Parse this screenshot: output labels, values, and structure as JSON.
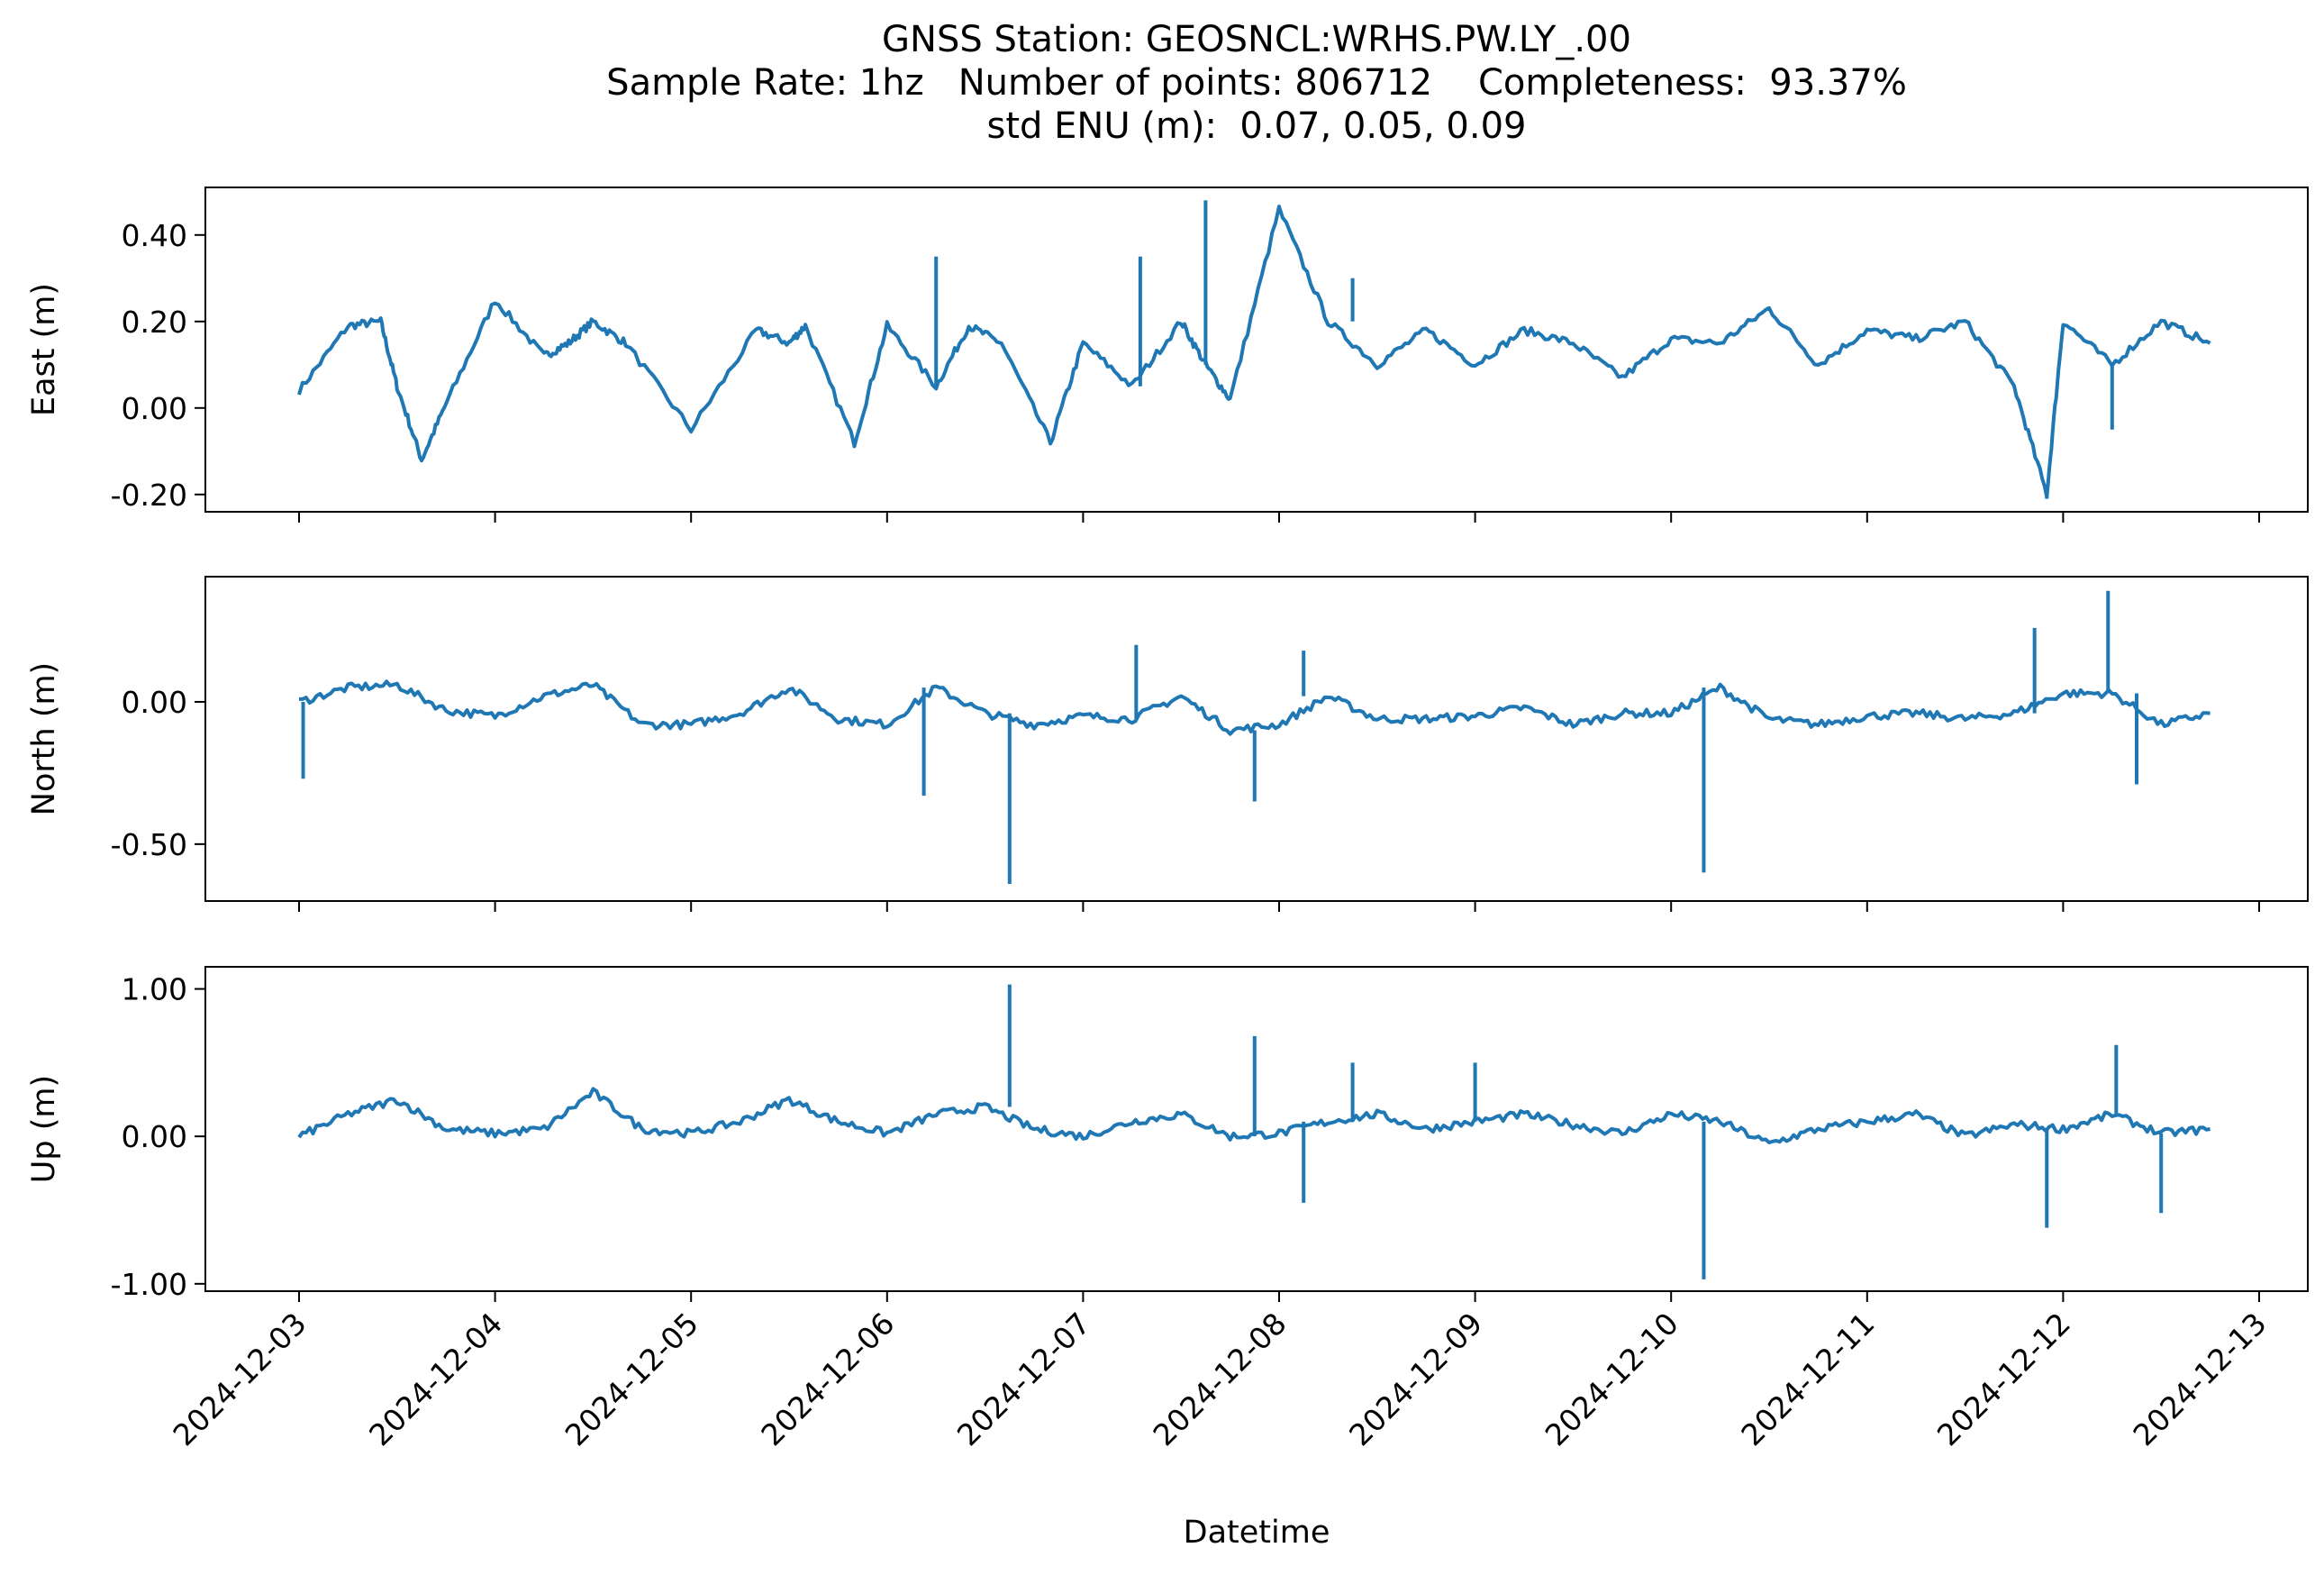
{
  "title": {
    "line1": "GNSS Station: GEOSNCL:WRHS.PW.LY_.00",
    "line2": "Sample Rate: 1hz   Number of points: 806712    Completeness:  93.37%",
    "line3": "std ENU (m):  0.07, 0.05, 0.09"
  },
  "colors": {
    "series": "#1f77b4",
    "axes": "#000000",
    "background": "#ffffff"
  },
  "chart_data": [
    {
      "type": "line",
      "ylabel": "East (m)",
      "xlabel": "",
      "ylim": [
        -0.24,
        0.51
      ],
      "yticks": [
        -0.2,
        0.0,
        0.2,
        0.4
      ],
      "ytick_labels": [
        "-0.20",
        "0.00",
        "0.20",
        "0.40"
      ],
      "grid": false,
      "x": [
        "2024-12-03T00:00",
        "2024-12-03T06:00",
        "2024-12-03T10:00",
        "2024-12-03T12:00",
        "2024-12-03T15:00",
        "2024-12-03T18:00",
        "2024-12-04T00:00",
        "2024-12-04T06:00",
        "2024-12-04T09:00",
        "2024-12-04T12:00",
        "2024-12-04T16:00",
        "2024-12-05T00:00",
        "2024-12-05T08:00",
        "2024-12-05T12:00",
        "2024-12-05T14:00",
        "2024-12-05T20:00",
        "2024-12-06T00:00",
        "2024-12-06T06:00",
        "2024-12-06T10:00",
        "2024-12-06T14:00",
        "2024-12-06T20:00",
        "2024-12-07T00:00",
        "2024-12-07T06:00",
        "2024-12-07T12:00",
        "2024-12-07T15:00",
        "2024-12-07T18:00",
        "2024-12-08T00:00",
        "2024-12-08T06:00",
        "2024-12-08T12:00",
        "2024-12-08T18:00",
        "2024-12-09T00:00",
        "2024-12-09T06:00",
        "2024-12-09T12:00",
        "2024-12-09T18:00",
        "2024-12-10T00:00",
        "2024-12-10T06:00",
        "2024-12-10T12:00",
        "2024-12-10T18:00",
        "2024-12-11T00:00",
        "2024-12-11T06:00",
        "2024-12-11T12:00",
        "2024-12-11T18:00",
        "2024-12-11T22:00",
        "2024-12-12T00:00",
        "2024-12-12T06:00",
        "2024-12-12T12:00",
        "2024-12-12T18:00"
      ],
      "values": [
        0.04,
        0.19,
        0.2,
        0.05,
        -0.12,
        0.01,
        0.25,
        0.12,
        0.15,
        0.2,
        0.15,
        -0.05,
        0.18,
        0.15,
        0.19,
        -0.08,
        0.19,
        0.05,
        0.19,
        0.15,
        -0.08,
        0.15,
        0.05,
        0.2,
        0.1,
        0.02,
        0.46,
        0.2,
        0.1,
        0.18,
        0.1,
        0.18,
        0.15,
        0.07,
        0.16,
        0.15,
        0.23,
        0.1,
        0.18,
        0.16,
        0.2,
        0.05,
        -0.2,
        0.2,
        0.1,
        0.2,
        0.15
      ],
      "spikes": [
        {
          "x": "2024-12-06T06:00",
          "value": 0.35
        },
        {
          "x": "2024-12-07T07:00",
          "value": 0.35
        },
        {
          "x": "2024-12-07T15:00",
          "value": 0.48
        },
        {
          "x": "2024-12-08T09:00",
          "value": 0.3
        },
        {
          "x": "2024-12-11T22:00",
          "value": -0.21
        },
        {
          "x": "2024-12-12T06:00",
          "value": -0.05
        }
      ]
    },
    {
      "type": "line",
      "ylabel": "North (m)",
      "xlabel": "",
      "ylim": [
        -0.7,
        0.44
      ],
      "yticks": [
        -0.5,
        0.0
      ],
      "ytick_labels": [
        "-0.50",
        "0.00"
      ],
      "grid": false,
      "x": [
        "2024-12-03T00:00",
        "2024-12-03T06:00",
        "2024-12-03T12:00",
        "2024-12-03T18:00",
        "2024-12-04T00:00",
        "2024-12-04T06:00",
        "2024-12-04T12:00",
        "2024-12-04T18:00",
        "2024-12-05T00:00",
        "2024-12-05T06:00",
        "2024-12-05T12:00",
        "2024-12-05T18:00",
        "2024-12-06T00:00",
        "2024-12-06T06:00",
        "2024-12-06T12:00",
        "2024-12-06T18:00",
        "2024-12-07T00:00",
        "2024-12-07T06:00",
        "2024-12-07T12:00",
        "2024-12-07T18:00",
        "2024-12-08T00:00",
        "2024-12-08T06:00",
        "2024-12-08T12:00",
        "2024-12-08T18:00",
        "2024-12-09T00:00",
        "2024-12-09T06:00",
        "2024-12-09T12:00",
        "2024-12-09T18:00",
        "2024-12-10T00:00",
        "2024-12-10T06:00",
        "2024-12-10T12:00",
        "2024-12-10T18:00",
        "2024-12-11T00:00",
        "2024-12-11T06:00",
        "2024-12-11T12:00",
        "2024-12-11T18:00",
        "2024-12-12T00:00",
        "2024-12-12T06:00",
        "2024-12-12T12:00",
        "2024-12-12T18:00"
      ],
      "values": [
        0.0,
        0.05,
        0.06,
        -0.03,
        -0.05,
        0.02,
        0.06,
        -0.08,
        -0.08,
        -0.04,
        0.05,
        -0.06,
        -0.08,
        0.05,
        -0.04,
        -0.08,
        -0.05,
        -0.06,
        0.02,
        -0.1,
        -0.08,
        0.02,
        -0.06,
        -0.06,
        -0.05,
        -0.02,
        -0.08,
        -0.04,
        -0.04,
        0.05,
        -0.06,
        -0.08,
        -0.05,
        -0.04,
        -0.06,
        -0.04,
        0.03,
        0.03,
        -0.08,
        -0.04
      ],
      "spikes": [
        {
          "x": "2024-12-03T00:30",
          "value": -0.27
        },
        {
          "x": "2024-12-06T04:30",
          "value": -0.33
        },
        {
          "x": "2024-12-06T15:00",
          "value": -0.64
        },
        {
          "x": "2024-12-07T06:30",
          "value": 0.2
        },
        {
          "x": "2024-12-07T21:00",
          "value": -0.35
        },
        {
          "x": "2024-12-08T03:00",
          "value": 0.18
        },
        {
          "x": "2024-12-10T04:00",
          "value": -0.6
        },
        {
          "x": "2024-12-11T20:30",
          "value": 0.26
        },
        {
          "x": "2024-12-12T05:30",
          "value": 0.39
        },
        {
          "x": "2024-12-12T09:00",
          "value": -0.29
        }
      ]
    },
    {
      "type": "line",
      "ylabel": "Up (m)",
      "xlabel": "Datetime",
      "ylim": [
        -1.05,
        1.15
      ],
      "yticks": [
        -1.0,
        0.0,
        1.0
      ],
      "ytick_labels": [
        "-1.00",
        "0.00",
        "1.00"
      ],
      "grid": false,
      "xticks": [
        "2024-12-03",
        "2024-12-04",
        "2024-12-05",
        "2024-12-06",
        "2024-12-07",
        "2024-12-08",
        "2024-12-09",
        "2024-12-10",
        "2024-12-11",
        "2024-12-12",
        "2024-12-13"
      ],
      "x": [
        "2024-12-03T00:00",
        "2024-12-03T06:00",
        "2024-12-03T12:00",
        "2024-12-03T18:00",
        "2024-12-04T00:00",
        "2024-12-04T06:00",
        "2024-12-04T12:00",
        "2024-12-04T18:00",
        "2024-12-05T00:00",
        "2024-12-05T06:00",
        "2024-12-05T12:00",
        "2024-12-05T18:00",
        "2024-12-06T00:00",
        "2024-12-06T06:00",
        "2024-12-06T12:00",
        "2024-12-06T18:00",
        "2024-12-07T00:00",
        "2024-12-07T06:00",
        "2024-12-07T12:00",
        "2024-12-07T18:00",
        "2024-12-08T00:00",
        "2024-12-08T06:00",
        "2024-12-08T12:00",
        "2024-12-08T18:00",
        "2024-12-09T00:00",
        "2024-12-09T06:00",
        "2024-12-09T12:00",
        "2024-12-09T18:00",
        "2024-12-10T00:00",
        "2024-12-10T06:00",
        "2024-12-10T12:00",
        "2024-12-10T18:00",
        "2024-12-11T00:00",
        "2024-12-11T06:00",
        "2024-12-11T12:00",
        "2024-12-11T18:00",
        "2024-12-12T00:00",
        "2024-12-12T06:00",
        "2024-12-12T12:00",
        "2024-12-12T18:00"
      ],
      "values": [
        0.0,
        0.15,
        0.25,
        0.05,
        0.02,
        0.05,
        0.3,
        0.05,
        0.02,
        0.1,
        0.25,
        0.1,
        0.02,
        0.15,
        0.2,
        0.05,
        0.0,
        0.1,
        0.15,
        0.0,
        0.02,
        0.1,
        0.15,
        0.05,
        0.1,
        0.15,
        0.08,
        0.02,
        0.15,
        0.1,
        -0.05,
        0.05,
        0.1,
        0.15,
        0.0,
        0.08,
        0.05,
        0.15,
        0.02,
        0.05
      ],
      "spikes": [
        {
          "x": "2024-12-06T15:00",
          "value": 1.03
        },
        {
          "x": "2024-12-07T21:00",
          "value": 0.68
        },
        {
          "x": "2024-12-08T09:00",
          "value": 0.5
        },
        {
          "x": "2024-12-08T03:00",
          "value": -0.45
        },
        {
          "x": "2024-12-09T00:00",
          "value": 0.5
        },
        {
          "x": "2024-12-10T04:00",
          "value": -0.97
        },
        {
          "x": "2024-12-11T22:00",
          "value": -0.62
        },
        {
          "x": "2024-12-12T06:30",
          "value": 0.62
        },
        {
          "x": "2024-12-12T12:00",
          "value": -0.52
        }
      ]
    }
  ]
}
